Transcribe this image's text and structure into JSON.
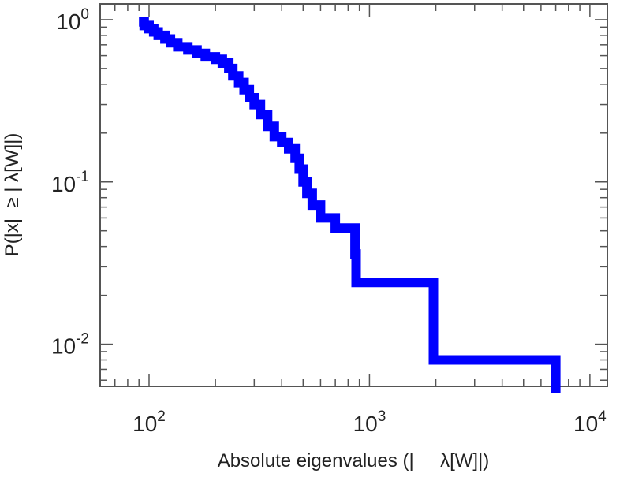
{
  "chart_data": {
    "type": "line",
    "subtype": "step-ccdf",
    "xscale": "log",
    "yscale": "log",
    "xlim": [
      60,
      12000
    ],
    "ylim": [
      0.0055,
      1.25
    ],
    "xticks": [
      {
        "value": 100,
        "base": "10",
        "exp": "2"
      },
      {
        "value": 1000,
        "base": "10",
        "exp": "3"
      },
      {
        "value": 10000,
        "base": "10",
        "exp": "4"
      }
    ],
    "yticks": [
      {
        "value": 0.01,
        "base": "10",
        "exp": "-2"
      },
      {
        "value": 0.1,
        "base": "10",
        "exp": "-1"
      },
      {
        "value": 1,
        "base": "10",
        "exp": "0"
      }
    ],
    "xlabel": "Absolute eigenvalues (|     λ[W]|)",
    "ylabel": "P(|x|  ≥ | λ[W]|)",
    "grid": false,
    "line_color": "#0000ff",
    "series": [
      {
        "x": [
          90,
          95,
          100,
          105,
          110,
          118,
          125,
          135,
          150,
          165,
          180,
          200,
          215,
          230,
          240,
          255,
          270,
          285,
          300,
          320,
          345,
          370,
          400,
          430,
          460,
          480,
          500,
          520,
          550,
          600,
          700,
          860,
          870,
          1950,
          7000,
          7000
        ],
        "y": [
          0.97,
          0.92,
          0.88,
          0.84,
          0.8,
          0.76,
          0.72,
          0.68,
          0.65,
          0.62,
          0.59,
          0.57,
          0.54,
          0.5,
          0.45,
          0.41,
          0.37,
          0.33,
          0.3,
          0.26,
          0.22,
          0.19,
          0.175,
          0.16,
          0.14,
          0.12,
          0.1,
          0.085,
          0.072,
          0.06,
          0.052,
          0.036,
          0.024,
          0.008,
          0.008,
          0.005
        ]
      }
    ]
  }
}
